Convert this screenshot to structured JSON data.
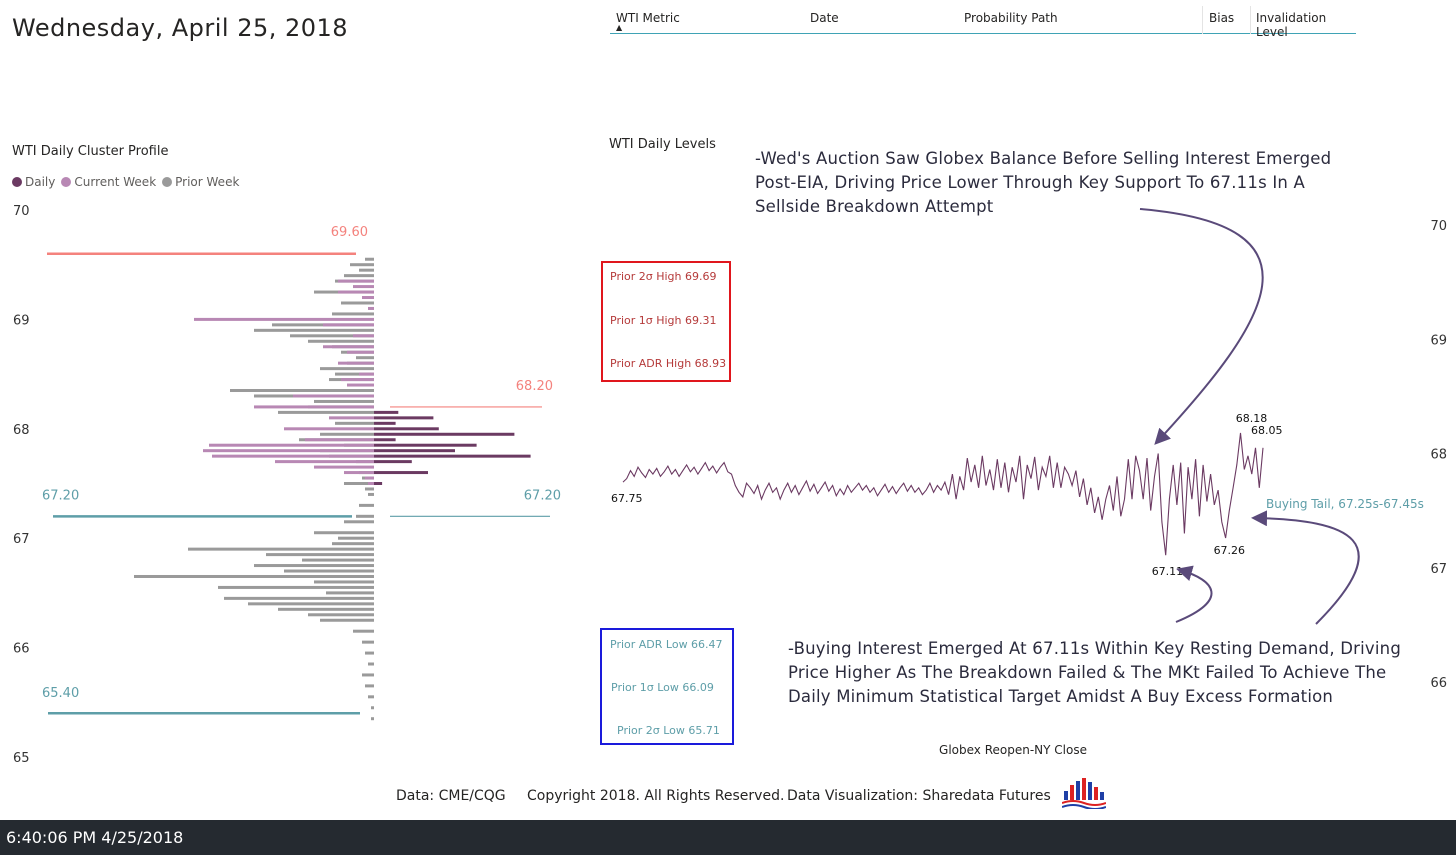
{
  "header": {
    "date_title": "Wednesday, April 25, 2018"
  },
  "table_header": {
    "columns": [
      "WTI Metric",
      "Date",
      "Probability Path",
      "Bias",
      "Invalidation Level"
    ],
    "sort_indicator": "▲"
  },
  "colors": {
    "daily": "#6b3a62",
    "current_week": "#b888b4",
    "prior_week": "#9a9a9a",
    "high_line": "#f4827d",
    "low_line": "#5e9ea8",
    "high_text": "#b53a3a",
    "low_text": "#5e9ea8",
    "red_box": "#e0161d",
    "blue_box": "#1a1adb"
  },
  "chart_data": [
    {
      "type": "bar",
      "title": "WTI Daily Cluster Profile",
      "orientation": "horizontal",
      "legend": {
        "placement": "top-left",
        "items": [
          {
            "name": "Daily",
            "color": "#6b3a62"
          },
          {
            "name": "Current Week",
            "color": "#b888b4"
          },
          {
            "name": "Prior Week",
            "color": "#9a9a9a"
          }
        ]
      },
      "ylim": [
        65,
        70
      ],
      "yticks": [
        "70",
        "69",
        "68",
        "67",
        "66",
        "65"
      ],
      "reference_lines": [
        {
          "label": "69.60",
          "value": 69.6,
          "side": "left",
          "color": "#f4827d"
        },
        {
          "label": "68.20",
          "value": 68.2,
          "side": "right",
          "color": "#f4827d"
        },
        {
          "label": "67.20",
          "value": 67.2,
          "side": "left",
          "color": "#5e9ea8"
        },
        {
          "label": "67.20",
          "value": 67.2,
          "side": "right",
          "color": "#5e9ea8"
        },
        {
          "label": "65.40",
          "value": 65.4,
          "side": "left",
          "color": "#5e9ea8"
        }
      ],
      "series": [
        {
          "name": "Prior Week",
          "side": "left",
          "price": [
            69.55,
            69.5,
            69.45,
            69.4,
            69.35,
            69.25,
            69.15,
            69.05,
            68.95,
            68.9,
            68.85,
            68.8,
            68.75,
            68.7,
            68.65,
            68.6,
            68.55,
            68.5,
            68.45,
            68.35,
            68.3,
            68.25,
            68.2,
            68.15,
            68.05,
            67.95,
            67.9,
            67.85,
            67.8,
            67.75,
            67.7,
            67.6,
            67.55,
            67.5,
            67.45,
            67.4,
            67.3,
            67.2,
            67.15,
            67.05,
            67.0,
            66.95,
            66.9,
            66.85,
            66.8,
            66.75,
            66.7,
            66.65,
            66.6,
            66.55,
            66.5,
            66.45,
            66.4,
            66.35,
            66.3,
            66.25,
            66.15,
            66.05,
            65.95,
            65.85,
            65.75,
            65.65,
            65.55,
            65.45,
            65.35
          ],
          "values": [
            0.03,
            0.08,
            0.05,
            0.1,
            0.13,
            0.2,
            0.11,
            0.14,
            0.34,
            0.4,
            0.28,
            0.22,
            0.14,
            0.11,
            0.06,
            0.09,
            0.18,
            0.13,
            0.15,
            0.48,
            0.4,
            0.2,
            0.22,
            0.32,
            0.13,
            0.18,
            0.25,
            0.1,
            0.18,
            0.15,
            0.06,
            0.05,
            0.04,
            0.1,
            0.03,
            0.02,
            0.05,
            0.06,
            0.1,
            0.2,
            0.12,
            0.14,
            0.62,
            0.36,
            0.24,
            0.4,
            0.3,
            0.8,
            0.2,
            0.52,
            0.16,
            0.5,
            0.42,
            0.32,
            0.22,
            0.18,
            0.07,
            0.04,
            0.03,
            0.02,
            0.04,
            0.03,
            0.02,
            0.01,
            0.01
          ]
        },
        {
          "name": "Current Week",
          "side": "left",
          "price": [
            69.35,
            69.3,
            69.25,
            69.2,
            69.1,
            69.0,
            68.95,
            68.85,
            68.75,
            68.7,
            68.6,
            68.5,
            68.45,
            68.4,
            68.3,
            68.2,
            68.1,
            68.0,
            67.9,
            67.85,
            67.8,
            67.75,
            67.7,
            67.65,
            67.6,
            67.55,
            67.5
          ],
          "values": [
            0.12,
            0.07,
            0.12,
            0.04,
            0.02,
            0.6,
            0.17,
            0.07,
            0.17,
            0.09,
            0.12,
            0.05,
            0.11,
            0.09,
            0.27,
            0.4,
            0.15,
            0.3,
            0.23,
            0.55,
            0.57,
            0.54,
            0.33,
            0.2,
            0.1,
            0.03,
            0.02
          ]
        },
        {
          "name": "Daily",
          "side": "right",
          "price": [
            68.15,
            68.1,
            68.05,
            68.0,
            67.95,
            67.9,
            67.85,
            67.8,
            67.75,
            67.7,
            67.6,
            67.5
          ],
          "values": [
            0.09,
            0.22,
            0.08,
            0.24,
            0.52,
            0.08,
            0.38,
            0.3,
            0.58,
            0.14,
            0.2,
            0.03
          ]
        }
      ]
    },
    {
      "type": "line",
      "title": "WTI Daily Levels",
      "xlabel": "Globex Reopen-NY Close",
      "ylim": [
        65.7,
        70.3
      ],
      "yticks": [
        "70",
        "69",
        "68",
        "67",
        "66"
      ],
      "series": [
        {
          "name": "",
          "color": "#6b3a62",
          "values": [
            67.75,
            67.78,
            67.85,
            67.8,
            67.88,
            67.83,
            67.79,
            67.86,
            67.82,
            67.87,
            67.8,
            67.84,
            67.89,
            67.82,
            67.86,
            67.8,
            67.85,
            67.9,
            67.84,
            67.88,
            67.82,
            67.87,
            67.92,
            67.85,
            67.89,
            67.83,
            67.88,
            67.92,
            67.84,
            67.82,
            67.72,
            67.66,
            67.62,
            67.74,
            67.7,
            67.65,
            67.72,
            67.6,
            67.68,
            67.74,
            67.66,
            67.7,
            67.6,
            67.68,
            67.74,
            67.66,
            67.72,
            67.64,
            67.7,
            67.76,
            67.67,
            67.73,
            67.65,
            67.7,
            67.75,
            67.67,
            67.72,
            67.63,
            67.69,
            67.64,
            67.72,
            67.66,
            67.7,
            67.74,
            67.68,
            67.72,
            67.66,
            67.7,
            67.63,
            67.68,
            67.73,
            67.66,
            67.71,
            67.65,
            67.7,
            67.74,
            67.67,
            67.72,
            67.66,
            67.7,
            67.64,
            67.68,
            67.74,
            67.66,
            67.72,
            67.68,
            67.75,
            67.64,
            67.82,
            67.6,
            67.8,
            67.68,
            67.96,
            67.75,
            67.9,
            67.7,
            67.98,
            67.72,
            67.86,
            67.68,
            67.95,
            67.7,
            67.92,
            67.66,
            67.88,
            67.75,
            67.98,
            67.6,
            67.9,
            67.78,
            67.97,
            67.68,
            67.88,
            67.8,
            67.98,
            67.7,
            67.92,
            67.7,
            67.88,
            67.82,
            67.72,
            67.85,
            67.62,
            67.78,
            67.55,
            67.7,
            67.48,
            67.62,
            67.42,
            67.6,
            67.72,
            67.5,
            67.8,
            67.45,
            67.6,
            67.95,
            67.6,
            67.98,
            67.85,
            67.6,
            67.96,
            67.5,
            67.8,
            68.0,
            67.4,
            67.11,
            67.6,
            67.9,
            67.55,
            67.92,
            67.3,
            67.88,
            67.6,
            67.95,
            67.45,
            67.9,
            67.58,
            67.82,
            67.55,
            67.68,
            67.4,
            67.26,
            67.5,
            67.7,
            67.9,
            68.18,
            67.86,
            67.98,
            67.82,
            68.05,
            67.7,
            68.05
          ]
        }
      ],
      "data_labels": [
        "67.75",
        "68.18",
        "68.05",
        "67.11",
        "67.26"
      ],
      "annotation_label": "Buying Tail, 67.25s-67.45s"
    }
  ],
  "levels_high": [
    "Prior 2σ High 69.69",
    "Prior 1σ High 69.31",
    "Prior ADR High 68.93"
  ],
  "levels_low": [
    "Prior ADR Low 66.47",
    "Prior 1σ Low 66.09",
    "Prior 2σ Low 65.71"
  ],
  "annotations": {
    "top": "-Wed's Auction Saw Globex Balance Before Selling Interest Emerged Post-EIA, Driving Price Lower Through Key Support To 67.11s In A Sellside Breakdown Attempt",
    "bottom": "-Buying Interest Emerged At 67.11s Within Key Resting Demand, Driving Price Higher As The Breakdown Failed & The MKt Failed To Achieve The Daily Minimum Statistical Target Amidst A Buy Excess Formation"
  },
  "footer": {
    "source": "Data: CME/CQG",
    "copyright": "Copyright 2018. All Rights Reserved.",
    "credit": "Data Visualization: Sharedata Futures",
    "logo_icon": "sharedata-logo-icon"
  },
  "statusbar": {
    "timestamp": "6:40:06 PM 4/25/2018"
  }
}
